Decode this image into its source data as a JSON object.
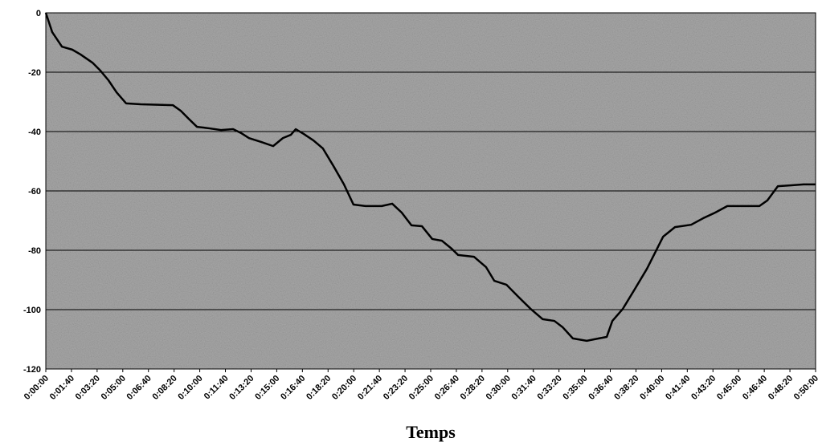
{
  "chart_data": {
    "type": "line",
    "x_label": "Temps",
    "x": [
      0,
      25,
      63,
      103,
      135,
      182,
      213,
      244,
      276,
      313,
      370,
      495,
      526,
      557,
      589,
      636,
      683,
      730,
      761,
      792,
      839,
      886,
      924,
      955,
      974,
      1005,
      1043,
      1080,
      1121,
      1162,
      1199,
      1246,
      1309,
      1350,
      1387,
      1425,
      1466,
      1506,
      1544,
      1582,
      1607,
      1669,
      1716,
      1748,
      1795,
      1842,
      1889,
      1936,
      1982,
      2014,
      2054,
      2108,
      2155,
      2186,
      2208,
      2249,
      2296,
      2343,
      2406,
      2452,
      2515,
      2562,
      2609,
      2656,
      2781,
      2812,
      2853,
      2906,
      2953,
      3000
    ],
    "series": [
      {
        "color": "#000000",
        "values": [
          0,
          -6.5,
          -11.4,
          -12.4,
          -14,
          -16.8,
          -19.5,
          -22.7,
          -26.8,
          -30.5,
          -30.8,
          -31.1,
          -33,
          -35.7,
          -38.4,
          -38.9,
          -39.5,
          -39.2,
          -40.5,
          -42.2,
          -43.5,
          -44.9,
          -42.2,
          -41.1,
          -39.2,
          -40.8,
          -43,
          -45.7,
          -51.6,
          -57.8,
          -64.6,
          -65.1,
          -65.1,
          -64.3,
          -67.3,
          -71.6,
          -71.9,
          -76.2,
          -76.8,
          -79.5,
          -81.6,
          -82.2,
          -85.7,
          -90.3,
          -91.6,
          -95.7,
          -99.7,
          -103.2,
          -103.8,
          -105.9,
          -109.7,
          -110.5,
          -109.7,
          -109.2,
          -103.8,
          -99.7,
          -93,
          -86.2,
          -75.4,
          -72.2,
          -71.4,
          -69.2,
          -67.3,
          -65.1,
          -65.1,
          -63.2,
          -58.4,
          -58.1,
          -57.8,
          -57.8
        ]
      }
    ],
    "xlim": [
      0,
      3000
    ],
    "xticks": [
      {
        "value": 0,
        "label": "0:00:00"
      },
      {
        "value": 100,
        "label": "0:01:40"
      },
      {
        "value": 200,
        "label": "0:03:20"
      },
      {
        "value": 300,
        "label": "0:05:00"
      },
      {
        "value": 400,
        "label": "0:06:40"
      },
      {
        "value": 500,
        "label": "0:08:20"
      },
      {
        "value": 600,
        "label": "0:10:00"
      },
      {
        "value": 700,
        "label": "0:11:40"
      },
      {
        "value": 800,
        "label": "0:13:20"
      },
      {
        "value": 900,
        "label": "0:15:00"
      },
      {
        "value": 1000,
        "label": "0:16:40"
      },
      {
        "value": 1100,
        "label": "0:18:20"
      },
      {
        "value": 1200,
        "label": "0:20:00"
      },
      {
        "value": 1300,
        "label": "0:21:40"
      },
      {
        "value": 1400,
        "label": "0:23:20"
      },
      {
        "value": 1500,
        "label": "0:25:00"
      },
      {
        "value": 1600,
        "label": "0:26:40"
      },
      {
        "value": 1700,
        "label": "0:28:20"
      },
      {
        "value": 1800,
        "label": "0:30:00"
      },
      {
        "value": 1900,
        "label": "0:31:40"
      },
      {
        "value": 2000,
        "label": "0:33:20"
      },
      {
        "value": 2100,
        "label": "0:35:00"
      },
      {
        "value": 2200,
        "label": "0:36:40"
      },
      {
        "value": 2300,
        "label": "0:38:20"
      },
      {
        "value": 2400,
        "label": "0:40:00"
      },
      {
        "value": 2500,
        "label": "0:41:40"
      },
      {
        "value": 2600,
        "label": "0:43:20"
      },
      {
        "value": 2700,
        "label": "0:45:00"
      },
      {
        "value": 2800,
        "label": "0:46:40"
      },
      {
        "value": 2900,
        "label": "0:48:20"
      },
      {
        "value": 3000,
        "label": "0:50:00"
      }
    ],
    "ylim": [
      -120,
      0
    ],
    "yticks": [
      -120,
      -100,
      -80,
      -60,
      -40,
      -20,
      0
    ],
    "grid": true
  }
}
